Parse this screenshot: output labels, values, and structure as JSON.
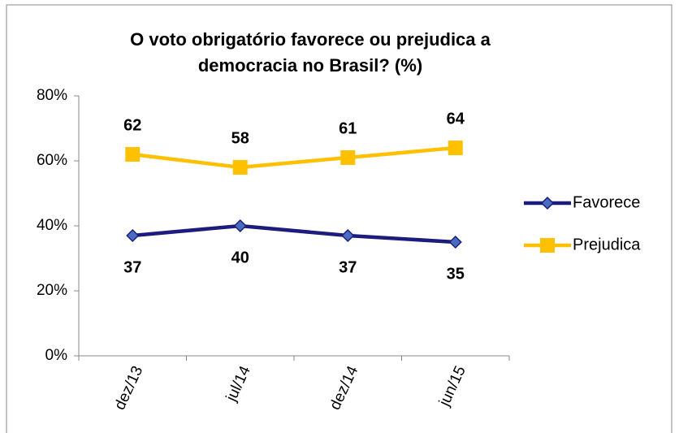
{
  "chart_data": {
    "type": "line",
    "title": [
      "O voto obrigatório favorece ou prejudica a",
      "democracia no Brasil? (%)"
    ],
    "categories": [
      "dez/13",
      "jul/14",
      "dez/14",
      "jun/15"
    ],
    "series": [
      {
        "name": "Favorece",
        "color": "#1c1c7c",
        "marker": "diamond",
        "values": [
          37,
          40,
          37,
          35
        ]
      },
      {
        "name": "Prejudica",
        "color": "#ffc000",
        "marker": "square",
        "values": [
          62,
          58,
          61,
          64
        ]
      }
    ],
    "ylim": [
      0,
      80
    ],
    "yticks": [
      {
        "value": 0,
        "label": "0%"
      },
      {
        "value": 20,
        "label": "20%"
      },
      {
        "value": 40,
        "label": "40%"
      },
      {
        "value": 60,
        "label": "60%"
      },
      {
        "value": 80,
        "label": "80%"
      }
    ],
    "grid": false,
    "legend": "right"
  }
}
